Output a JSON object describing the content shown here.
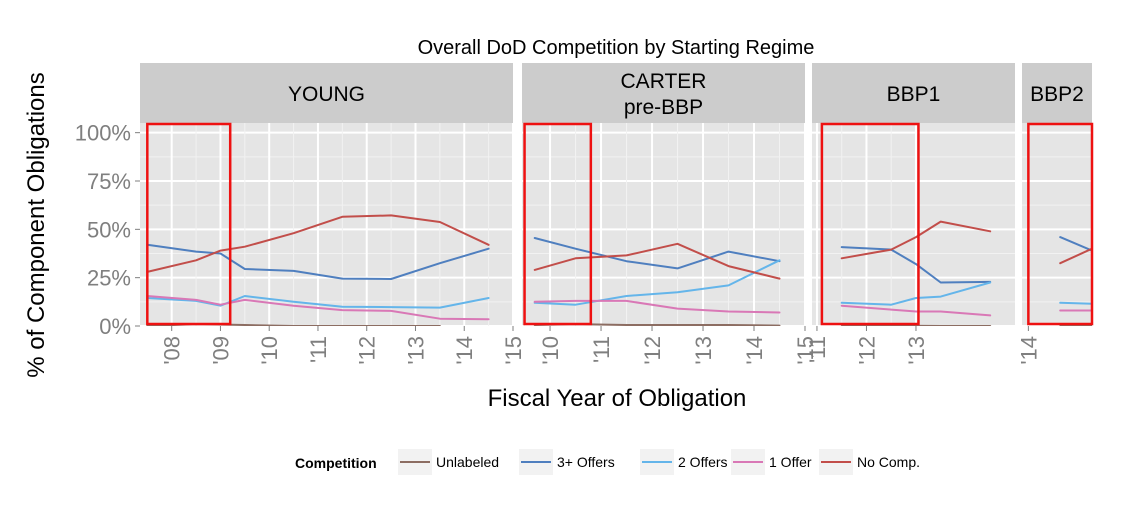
{
  "chart_data": {
    "type": "line",
    "title": "Overall DoD Competition by Starting Regime",
    "xlabel": "Fiscal Year of Obligation",
    "ylabel": "% of Component Obligations",
    "ylim": [
      0,
      1.05
    ],
    "y_ticks": [
      0,
      0.25,
      0.5,
      0.75,
      1.0
    ],
    "y_tick_labels": [
      "0%",
      "25%",
      "50%",
      "75%",
      "100%"
    ],
    "grid": true,
    "legend": {
      "title": "Competition",
      "placement": "bottom",
      "entries": [
        "Unlabeled",
        "3+ Offers",
        "2 Offers",
        "1 Offer",
        "No Comp."
      ]
    },
    "series_colors": {
      "Unlabeled": "#8c6d62",
      "3+ Offers": "#4f7fbf",
      "2 Offers": "#64b5ea",
      "1 Offer": "#d978b6",
      "No Comp.": "#c24e4a"
    },
    "highlight_color": "#ee1111",
    "panels": [
      {
        "label": [
          "YOUNG"
        ],
        "x_range": [
          2007.35,
          2015.0
        ],
        "x_ticks": [
          2008,
          2009,
          2010,
          2011,
          2012,
          2013,
          2014,
          2015
        ],
        "x_tick_labels": [
          "'08",
          "'09",
          "'10",
          "'11",
          "'12",
          "'13",
          "'14",
          "'15"
        ],
        "highlight": [
          2007.5,
          2009.2
        ],
        "series": [
          {
            "name": "Unlabeled",
            "x": [
              2007.5,
              2008.5,
              2009.5,
              2010.5,
              2011.5,
              2012.5,
              2013.5
            ],
            "y": [
              0.0,
              0.01,
              0.005,
              0.0,
              0.0,
              0.0,
              0.0
            ]
          },
          {
            "name": "3+ Offers",
            "x": [
              2007.5,
              2008.5,
              2009.0,
              2009.5,
              2010.5,
              2011.5,
              2012.5,
              2013.5,
              2014.5
            ],
            "y": [
              0.42,
              0.385,
              0.375,
              0.295,
              0.285,
              0.245,
              0.243,
              0.325,
              0.4
            ]
          },
          {
            "name": "2 Offers",
            "x": [
              2007.5,
              2008.5,
              2009.0,
              2009.5,
              2010.5,
              2011.5,
              2012.5,
              2013.5,
              2014.5
            ],
            "y": [
              0.145,
              0.13,
              0.105,
              0.155,
              0.125,
              0.1,
              0.098,
              0.095,
              0.145
            ]
          },
          {
            "name": "1 Offer",
            "x": [
              2007.5,
              2008.5,
              2009.0,
              2009.5,
              2010.5,
              2011.5,
              2012.5,
              2013.5,
              2014.5
            ],
            "y": [
              0.155,
              0.135,
              0.11,
              0.135,
              0.105,
              0.082,
              0.078,
              0.038,
              0.035
            ]
          },
          {
            "name": "No Comp.",
            "x": [
              2007.5,
              2008.5,
              2009.0,
              2009.5,
              2010.5,
              2011.5,
              2012.5,
              2013.5,
              2014.5
            ],
            "y": [
              0.28,
              0.34,
              0.39,
              0.41,
              0.48,
              0.565,
              0.572,
              0.538,
              0.42
            ]
          }
        ]
      },
      {
        "label": [
          "CARTER",
          "pre-BBP"
        ],
        "x_range": [
          2009.45,
          2015.0
        ],
        "x_ticks": [
          2010,
          2011,
          2012,
          2013,
          2014,
          2015
        ],
        "x_tick_labels": [
          "'10",
          "'11",
          "'12",
          "'13",
          "'14",
          "'15"
        ],
        "highlight": [
          2009.5,
          2010.8
        ],
        "series": [
          {
            "name": "Unlabeled",
            "x": [
              2009.7,
              2010.5,
              2011.5,
              2012.5,
              2013.5,
              2014.5
            ],
            "y": [
              0.005,
              0.01,
              0.005,
              0.005,
              0.005,
              0.002
            ]
          },
          {
            "name": "3+ Offers",
            "x": [
              2009.7,
              2010.5,
              2011.5,
              2012.5,
              2013.5,
              2014.5
            ],
            "y": [
              0.455,
              0.4,
              0.335,
              0.298,
              0.385,
              0.335
            ]
          },
          {
            "name": "2 Offers",
            "x": [
              2009.7,
              2010.5,
              2011.5,
              2012.5,
              2013.5,
              2014.5
            ],
            "y": [
              0.12,
              0.11,
              0.155,
              0.175,
              0.21,
              0.34
            ]
          },
          {
            "name": "1 Offer",
            "x": [
              2009.7,
              2010.5,
              2011.5,
              2012.5,
              2013.5,
              2014.5
            ],
            "y": [
              0.125,
              0.13,
              0.13,
              0.09,
              0.075,
              0.07
            ]
          },
          {
            "name": "No Comp.",
            "x": [
              2009.7,
              2010.5,
              2011.5,
              2012.5,
              2013.5,
              2014.5
            ],
            "y": [
              0.29,
              0.35,
              0.365,
              0.425,
              0.31,
              0.245
            ]
          }
        ]
      },
      {
        "label": [
          "BBP1"
        ],
        "x_range": [
          2010.9,
          2015.0
        ],
        "x_ticks": [
          2011,
          2012,
          2013
        ],
        "x_tick_labels": [
          "'11",
          "'12",
          "'13"
        ],
        "highlight": [
          2011.1,
          2013.05
        ],
        "series": [
          {
            "name": "Unlabeled",
            "x": [
              2011.5,
              2012.5,
              2013.5,
              2014.5
            ],
            "y": [
              0.005,
              0.002,
              0.0,
              0.0
            ]
          },
          {
            "name": "3+ Offers",
            "x": [
              2011.5,
              2012.5,
              2013.0,
              2013.5,
              2014.5
            ],
            "y": [
              0.408,
              0.395,
              0.32,
              0.225,
              0.228
            ]
          },
          {
            "name": "2 Offers",
            "x": [
              2011.5,
              2012.5,
              2013.0,
              2013.5,
              2014.5
            ],
            "y": [
              0.12,
              0.11,
              0.145,
              0.152,
              0.225
            ]
          },
          {
            "name": "1 Offer",
            "x": [
              2011.5,
              2012.5,
              2013.0,
              2013.5,
              2014.5
            ],
            "y": [
              0.105,
              0.085,
              0.075,
              0.075,
              0.055
            ]
          },
          {
            "name": "No Comp.",
            "x": [
              2011.5,
              2012.5,
              2013.0,
              2013.5,
              2014.5
            ],
            "y": [
              0.35,
              0.395,
              0.46,
              0.54,
              0.49
            ]
          }
        ]
      },
      {
        "label": [
          "BBP2"
        ],
        "x_range": [
          2013.9,
          2015.0
        ],
        "x_ticks": [
          2014
        ],
        "x_tick_labels": [
          "'14"
        ],
        "highlight": [
          2014.0,
          2015.0
        ],
        "series": [
          {
            "name": "Unlabeled",
            "x": [
              2014.5,
              2015.0
            ],
            "y": [
              0.005,
              0.0
            ]
          },
          {
            "name": "3+ Offers",
            "x": [
              2014.5,
              2015.0
            ],
            "y": [
              0.46,
              0.39
            ]
          },
          {
            "name": "2 Offers",
            "x": [
              2014.5,
              2015.0
            ],
            "y": [
              0.12,
              0.115
            ]
          },
          {
            "name": "1 Offer",
            "x": [
              2014.5,
              2015.0
            ],
            "y": [
              0.08,
              0.08
            ]
          },
          {
            "name": "No Comp.",
            "x": [
              2014.5,
              2015.0
            ],
            "y": [
              0.325,
              0.4
            ]
          }
        ]
      }
    ]
  }
}
